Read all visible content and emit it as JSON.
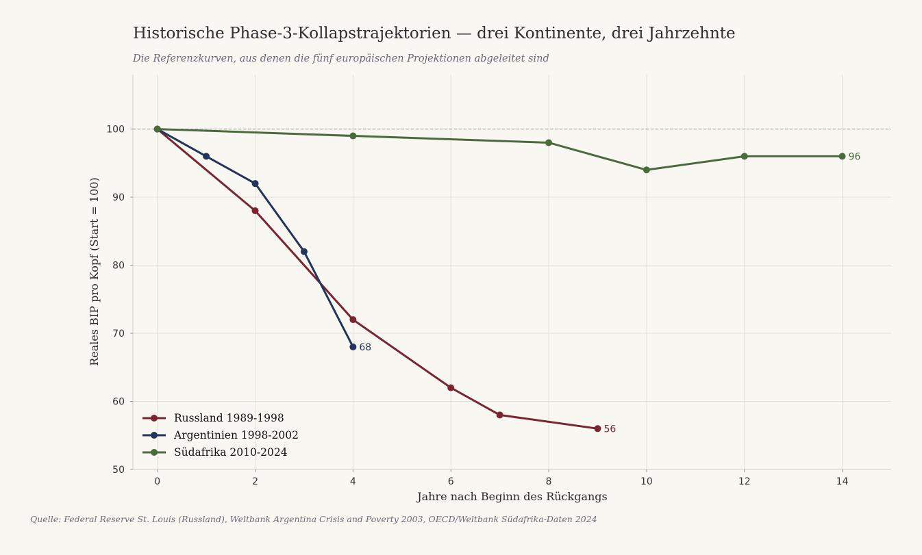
{
  "chart_data": {
    "type": "line",
    "title": "Historische Phase-3-Kollapstrajektorien — drei Kontinente, drei Jahrzehnte",
    "subtitle": "Die Referenzkurven, aus denen die fünf europäischen Projektionen abgeleitet sind",
    "xlabel": "Jahre nach Beginn des Rückgangs",
    "ylabel": "Reales BIP pro Kopf (Start = 100)",
    "xlim": [
      -0.5,
      15
    ],
    "ylim": [
      50,
      108
    ],
    "xticks": [
      0,
      2,
      4,
      6,
      8,
      10,
      12,
      14
    ],
    "yticks": [
      50,
      60,
      70,
      80,
      90,
      100
    ],
    "reference_line": 100,
    "grid": true,
    "legend_position": "lower-left",
    "series": [
      {
        "name": "Russland 1989-1998",
        "color": "#7a2530",
        "x": [
          0,
          2,
          4,
          6,
          7,
          9
        ],
        "y": [
          100,
          88,
          72,
          62,
          58,
          56
        ],
        "end_label": "56"
      },
      {
        "name": "Argentinien 1998-2002",
        "color": "#22355c",
        "x": [
          0,
          1,
          2,
          3,
          4
        ],
        "y": [
          100,
          96,
          92,
          82,
          68
        ],
        "end_label": "68"
      },
      {
        "name": "Südafrika 2010-2024",
        "color": "#4a6b3b",
        "x": [
          0,
          4,
          8,
          10,
          12,
          14
        ],
        "y": [
          100,
          99,
          98,
          94,
          96,
          96
        ],
        "end_label": "96"
      }
    ],
    "source": "Quelle: Federal Reserve St. Louis (Russland), Weltbank Argentina Crisis and Poverty 2003, OECD/Weltbank Südafrika-Daten 2024"
  }
}
